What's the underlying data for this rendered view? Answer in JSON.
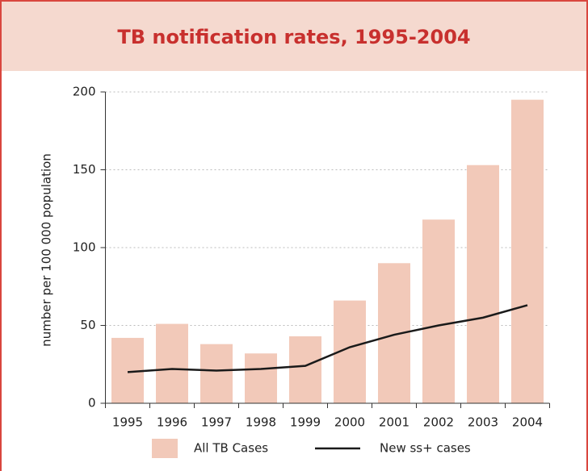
{
  "chart_data": {
    "type": "bar",
    "title": "TB notification rates, 1995-2004",
    "y_label": "number per 100 000 population",
    "categories": [
      "1995",
      "1996",
      "1997",
      "1998",
      "1999",
      "2000",
      "2001",
      "2002",
      "2003",
      "2004"
    ],
    "series": [
      {
        "name": "All TB Cases",
        "type": "bar",
        "color": "#f2c9b9",
        "values": [
          42,
          51,
          38,
          32,
          43,
          66,
          90,
          118,
          153,
          195
        ]
      },
      {
        "name": "New ss+ cases",
        "type": "line",
        "color": "#1a1a1a",
        "values": [
          20,
          22,
          21,
          22,
          24,
          36,
          44,
          50,
          55,
          63
        ]
      }
    ],
    "ylim": [
      0,
      200
    ],
    "yticks": [
      0,
      50,
      100,
      150,
      200
    ],
    "grid": true,
    "legend": "bottom"
  }
}
